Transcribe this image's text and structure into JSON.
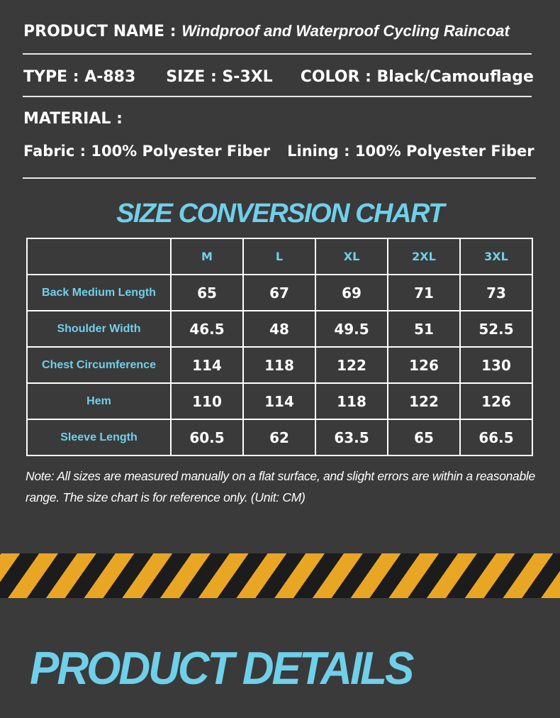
{
  "product": {
    "name_label": "PRODUCT NAME :",
    "name_value": "Windproof and Waterproof Cycling Raincoat",
    "type_text": "TYPE : A-883",
    "size_text": "SIZE : S-3XL",
    "color_text": "COLOR : Black/Camouflage",
    "material_label": "MATERIAL :",
    "fabric_text": "Fabric : 100% Polyester Fiber",
    "lining_text": "Lining : 100% Polyester Fiber"
  },
  "chart": {
    "title": "SIZE CONVERSION CHART",
    "headers": [
      "M",
      "L",
      "XL",
      "2XL",
      "3XL"
    ],
    "rows": [
      {
        "label": "Back Medium Length",
        "values": [
          "65",
          "67",
          "69",
          "71",
          "73"
        ]
      },
      {
        "label": "Shoulder Width",
        "values": [
          "46.5",
          "48",
          "49.5",
          "51",
          "52.5"
        ]
      },
      {
        "label": "Chest Circumference",
        "values": [
          "114",
          "118",
          "122",
          "126",
          "130"
        ]
      },
      {
        "label": "Hem",
        "values": [
          "110",
          "114",
          "118",
          "122",
          "126"
        ]
      },
      {
        "label": "Sleeve Length",
        "values": [
          "60.5",
          "62",
          "63.5",
          "65",
          "66.5"
        ]
      }
    ]
  },
  "note": "Note: All sizes are measured manually on a flat surface, and slight errors are within a reasonable range. The size chart is for reference only. (Unit: CM)",
  "details_title": "PRODUCT DETAILS",
  "colors": {
    "background": "#3a3a3a",
    "accent": "#6fd0ea",
    "hazard_yellow": "#e9a625",
    "hazard_black": "#1c1c1c"
  }
}
